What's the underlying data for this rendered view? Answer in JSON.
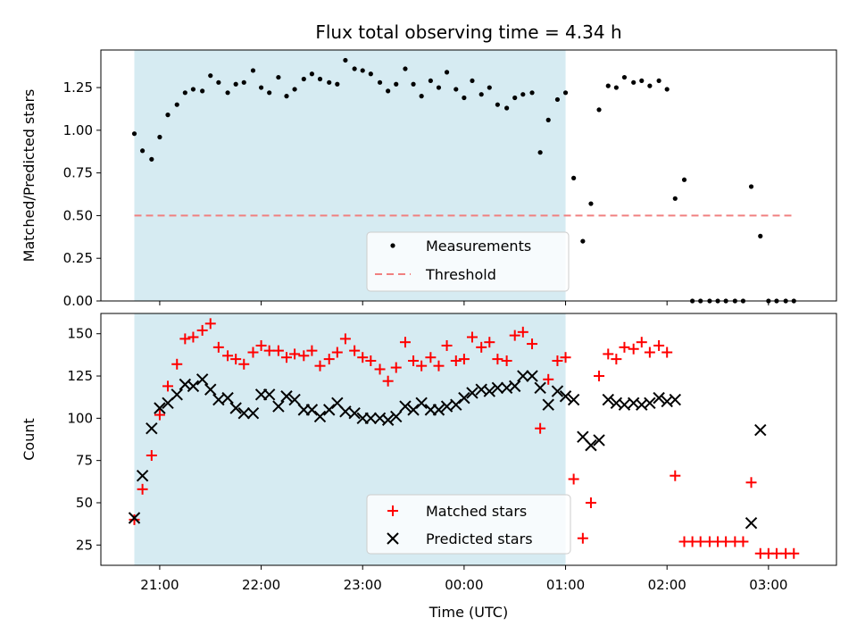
{
  "chart_data": [
    {
      "type": "scatter",
      "title": "Flux total observing time = 4.34 h",
      "ylabel": "Matched/Predicted stars",
      "xlabel": "",
      "x_unit": "hours UTC (continuous across midnight, 24 = 00:00)",
      "xlim": [
        20.42,
        27.67
      ],
      "ylim": [
        0,
        1.47
      ],
      "yticks": [
        0.0,
        0.25,
        0.5,
        0.75,
        1.0,
        1.25
      ],
      "ytick_labels": [
        "0.00",
        "0.25",
        "0.50",
        "0.75",
        "1.00",
        "1.25"
      ],
      "observing_window": [
        20.75,
        25.0
      ],
      "threshold": 0.5,
      "legend": [
        "Measurements",
        "Threshold"
      ],
      "legend_position": "lower-center",
      "series": [
        {
          "name": "Measurements",
          "x": [
            20.75,
            20.83,
            20.92,
            21.0,
            21.08,
            21.17,
            21.25,
            21.33,
            21.42,
            21.5,
            21.58,
            21.67,
            21.75,
            21.83,
            21.92,
            22.0,
            22.08,
            22.17,
            22.25,
            22.33,
            22.42,
            22.5,
            22.58,
            22.67,
            22.75,
            22.83,
            22.92,
            23.0,
            23.08,
            23.17,
            23.25,
            23.33,
            23.42,
            23.5,
            23.58,
            23.67,
            23.75,
            23.83,
            23.92,
            24.0,
            24.08,
            24.17,
            24.25,
            24.33,
            24.42,
            24.5,
            24.58,
            24.67,
            24.75,
            24.83,
            24.92,
            25.0,
            25.08,
            25.17,
            25.25,
            25.33,
            25.42,
            25.5,
            25.58,
            25.67,
            25.75,
            25.83,
            25.92,
            26.0,
            26.08,
            26.17,
            26.25,
            26.33,
            26.42,
            26.5,
            26.58,
            26.67,
            26.75,
            26.83,
            26.92,
            27.0,
            27.08,
            27.17,
            27.25
          ],
          "y": [
            0.98,
            0.88,
            0.83,
            0.96,
            1.09,
            1.15,
            1.22,
            1.24,
            1.23,
            1.32,
            1.28,
            1.22,
            1.27,
            1.28,
            1.35,
            1.25,
            1.22,
            1.31,
            1.2,
            1.24,
            1.3,
            1.33,
            1.3,
            1.28,
            1.27,
            1.41,
            1.36,
            1.35,
            1.33,
            1.28,
            1.23,
            1.27,
            1.36,
            1.27,
            1.2,
            1.29,
            1.25,
            1.34,
            1.24,
            1.19,
            1.29,
            1.21,
            1.25,
            1.15,
            1.13,
            1.19,
            1.21,
            1.22,
            0.87,
            1.06,
            1.18,
            1.22,
            0.72,
            0.35,
            0.57,
            1.12,
            1.26,
            1.25,
            1.31,
            1.28,
            1.29,
            1.26,
            1.29,
            1.24,
            0.6,
            0.71,
            0.0,
            0.0,
            0.0,
            0.0,
            0.0,
            0.0,
            0.0,
            0.67,
            0.38,
            0.0,
            0.0,
            0.0,
            0.0
          ]
        }
      ]
    },
    {
      "type": "scatter",
      "title": "",
      "ylabel": "Count",
      "xlabel": "Time (UTC)",
      "x_unit": "hours UTC (continuous across midnight, 24 = 00:00)",
      "xlim": [
        20.42,
        27.67
      ],
      "ylim": [
        13,
        162
      ],
      "xticks": [
        21,
        22,
        23,
        24,
        25,
        26,
        27
      ],
      "xtick_labels": [
        "21:00",
        "22:00",
        "23:00",
        "00:00",
        "01:00",
        "02:00",
        "03:00"
      ],
      "yticks": [
        25,
        50,
        75,
        100,
        125,
        150
      ],
      "ytick_labels": [
        "25",
        "50",
        "75",
        "100",
        "125",
        "150"
      ],
      "observing_window": [
        20.75,
        25.0
      ],
      "legend": [
        "Matched stars",
        "Predicted stars"
      ],
      "legend_position": "lower-center",
      "series": [
        {
          "name": "Matched stars",
          "x": [
            20.75,
            20.83,
            20.92,
            21.0,
            21.08,
            21.17,
            21.25,
            21.33,
            21.42,
            21.5,
            21.58,
            21.67,
            21.75,
            21.83,
            21.92,
            22.0,
            22.08,
            22.17,
            22.25,
            22.33,
            22.42,
            22.5,
            22.58,
            22.67,
            22.75,
            22.83,
            22.92,
            23.0,
            23.08,
            23.17,
            23.25,
            23.33,
            23.42,
            23.5,
            23.58,
            23.67,
            23.75,
            23.83,
            23.92,
            24.0,
            24.08,
            24.17,
            24.25,
            24.33,
            24.42,
            24.5,
            24.58,
            24.67,
            24.75,
            24.83,
            24.92,
            25.0,
            25.08,
            25.17,
            25.25,
            25.33,
            25.42,
            25.5,
            25.58,
            25.67,
            25.75,
            25.83,
            25.92,
            26.0,
            26.08,
            26.17,
            26.25,
            26.33,
            26.42,
            26.5,
            26.58,
            26.67,
            26.75,
            26.83,
            26.92,
            27.0,
            27.08,
            27.17,
            27.25
          ],
          "y": [
            40,
            58,
            78,
            102,
            119,
            132,
            147,
            148,
            152,
            156,
            142,
            137,
            135,
            132,
            139,
            143,
            140,
            140,
            136,
            138,
            137,
            140,
            131,
            135,
            139,
            147,
            140,
            136,
            134,
            129,
            122,
            130,
            145,
            134,
            131,
            136,
            131,
            143,
            134,
            135,
            148,
            142,
            145,
            135,
            134,
            149,
            151,
            144,
            94,
            123,
            134,
            136,
            64,
            29,
            50,
            125,
            138,
            135,
            142,
            141,
            145,
            139,
            143,
            139,
            66,
            27,
            27,
            27,
            27,
            27,
            27,
            27,
            27,
            62,
            20,
            20,
            20,
            20,
            20
          ]
        },
        {
          "name": "Predicted stars",
          "x": [
            20.75,
            20.83,
            20.92,
            21.0,
            21.08,
            21.17,
            21.25,
            21.33,
            21.42,
            21.5,
            21.58,
            21.67,
            21.75,
            21.83,
            21.92,
            22.0,
            22.08,
            22.17,
            22.25,
            22.33,
            22.42,
            22.5,
            22.58,
            22.67,
            22.75,
            22.83,
            22.92,
            23.0,
            23.08,
            23.17,
            23.25,
            23.33,
            23.42,
            23.5,
            23.58,
            23.67,
            23.75,
            23.83,
            23.92,
            24.0,
            24.08,
            24.17,
            24.25,
            24.33,
            24.42,
            24.5,
            24.58,
            24.67,
            24.75,
            24.83,
            24.92,
            25.0,
            25.08,
            25.17,
            25.25,
            25.33,
            25.42,
            25.5,
            25.58,
            25.67,
            25.75,
            25.83,
            25.92,
            26.0,
            26.08,
            26.83,
            26.92
          ],
          "y": [
            41,
            66,
            94,
            106,
            109,
            114,
            120,
            119,
            123,
            117,
            111,
            112,
            106,
            103,
            103,
            114,
            114,
            107,
            113,
            111,
            105,
            105,
            101,
            105,
            109,
            104,
            103,
            100,
            100,
            100,
            99,
            101,
            107,
            105,
            109,
            105,
            105,
            107,
            108,
            112,
            115,
            117,
            116,
            118,
            118,
            119,
            125,
            125,
            118,
            108,
            116,
            113,
            111,
            89,
            84,
            87,
            111,
            109,
            108,
            109,
            108,
            109,
            112,
            110,
            111,
            38,
            93
          ]
        }
      ]
    }
  ]
}
